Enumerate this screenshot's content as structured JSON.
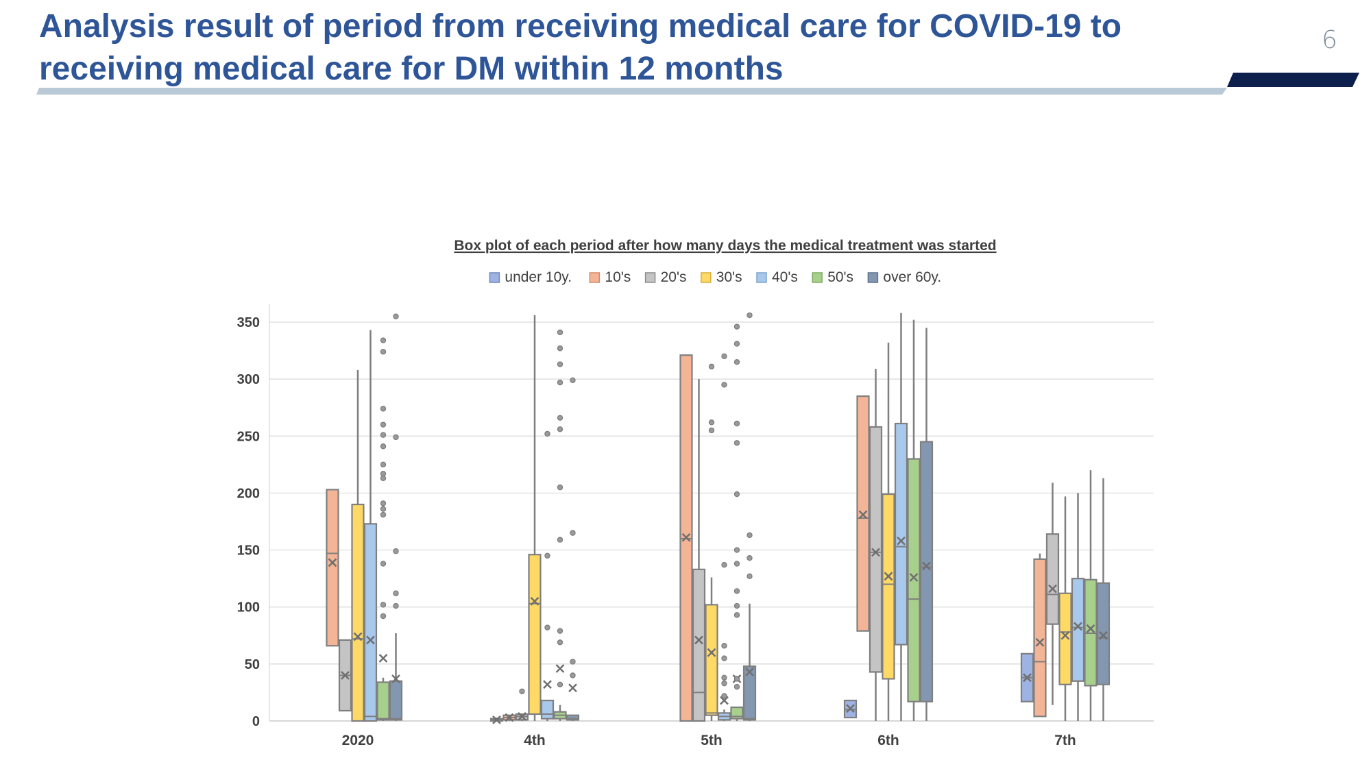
{
  "slide": {
    "title_line1": "Analysis result of period from receiving medical care for COVID-19 to",
    "title_line2": "receiving medical care for DM within 12 months",
    "page_number": "6"
  },
  "colors": {
    "title": "#2e5597",
    "rule_light": "#b9c9d6",
    "rule_dark": "#0d1f4c"
  },
  "chart_data": {
    "type": "box",
    "title": "Box plot of each period after how many days the medical treatment was started",
    "xlabel": "",
    "ylabel": "",
    "ylim": [
      0,
      360
    ],
    "yticks": [
      0,
      50,
      100,
      150,
      200,
      250,
      300,
      350
    ],
    "grid": true,
    "legend_position": "top",
    "categories": [
      "2020",
      "4th",
      "5th",
      "6th",
      "7th"
    ],
    "series": [
      {
        "name": "under 10y.",
        "color": "#9db3e4",
        "stroke": "#6f87b8",
        "boxes": [
          null,
          {
            "min": 0,
            "q1": 0,
            "median": 1,
            "q3": 2,
            "max": 3,
            "mean": 1
          },
          null,
          {
            "min": 3,
            "q1": 3,
            "median": 10,
            "q3": 18,
            "max": 18,
            "mean": 11
          },
          {
            "min": 17,
            "q1": 17,
            "median": 38,
            "q3": 59,
            "max": 59,
            "mean": 38
          }
        ],
        "outliers": [
          [],
          [],
          [],
          [],
          []
        ]
      },
      {
        "name": "10's",
        "color": "#f4b596",
        "stroke": "#d08a6a",
        "boxes": [
          {
            "min": 66,
            "q1": 66,
            "median": 147,
            "q3": 203,
            "max": 203,
            "mean": 139
          },
          {
            "min": 0,
            "q1": 1,
            "median": 3,
            "q3": 5,
            "max": 5,
            "mean": 3
          },
          {
            "min": 0,
            "q1": 0,
            "median": 160,
            "q3": 321,
            "max": 321,
            "mean": 161
          },
          {
            "min": 79,
            "q1": 79,
            "median": 178,
            "q3": 285,
            "max": 285,
            "mean": 181
          },
          {
            "min": 4,
            "q1": 4,
            "median": 52,
            "q3": 142,
            "max": 147,
            "mean": 69
          }
        ],
        "outliers": [
          [],
          [],
          [],
          [],
          []
        ]
      },
      {
        "name": "20's",
        "color": "#c4c4c4",
        "stroke": "#8c8c8c",
        "boxes": [
          {
            "min": 9,
            "q1": 9,
            "median": 40,
            "q3": 71,
            "max": 71,
            "mean": 40
          },
          {
            "min": 0,
            "q1": 1,
            "median": 4,
            "q3": 6,
            "max": 6,
            "mean": 4
          },
          {
            "min": 0,
            "q1": 0,
            "median": 25,
            "q3": 133,
            "max": 300,
            "mean": 71
          },
          {
            "min": 0,
            "q1": 43,
            "median": 148,
            "q3": 258,
            "max": 309,
            "mean": 148
          },
          {
            "min": 14,
            "q1": 85,
            "median": 111,
            "q3": 164,
            "max": 209,
            "mean": 116
          }
        ],
        "outliers": [
          [],
          [
            26
          ],
          [],
          [],
          []
        ]
      },
      {
        "name": "30's",
        "color": "#fed966",
        "stroke": "#d4ae3a",
        "boxes": [
          {
            "min": 0,
            "q1": 0,
            "median": 72,
            "q3": 190,
            "max": 308,
            "mean": 74
          },
          {
            "min": 0,
            "q1": 6,
            "median": 103,
            "q3": 146,
            "max": 356,
            "mean": 105
          },
          {
            "min": 0,
            "q1": 5,
            "median": 7,
            "q3": 102,
            "max": 126,
            "mean": 60
          },
          {
            "min": 0,
            "q1": 37,
            "median": 120,
            "q3": 199,
            "max": 332,
            "mean": 127
          },
          {
            "min": 0,
            "q1": 32,
            "median": 78,
            "q3": 112,
            "max": 197,
            "mean": 75
          }
        ],
        "outliers": [
          [],
          [],
          [
            311,
            262,
            255
          ],
          [],
          []
        ]
      },
      {
        "name": "40's",
        "color": "#a8c8ec",
        "stroke": "#7da3cc",
        "boxes": [
          {
            "min": 0,
            "q1": 0,
            "median": 4,
            "q3": 173,
            "max": 343,
            "mean": 71
          },
          {
            "min": 0,
            "q1": 2,
            "median": 6,
            "q3": 18,
            "max": 18,
            "mean": 32
          },
          {
            "min": 0,
            "q1": 1,
            "median": 4,
            "q3": 7,
            "max": 10,
            "mean": 18
          },
          {
            "min": 0,
            "q1": 67,
            "median": 153,
            "q3": 261,
            "max": 358,
            "mean": 158
          },
          {
            "min": 0,
            "q1": 35,
            "median": 82,
            "q3": 125,
            "max": 200,
            "mean": 83
          }
        ],
        "outliers": [
          [],
          [
            252,
            145,
            82
          ],
          [
            320,
            295,
            137,
            66,
            55,
            38,
            33,
            22
          ],
          [],
          []
        ]
      },
      {
        "name": "50's",
        "color": "#a8d08d",
        "stroke": "#7eab63",
        "boxes": [
          {
            "min": 0,
            "q1": 1,
            "median": 2,
            "q3": 34,
            "max": 38,
            "mean": 55
          },
          {
            "min": 0,
            "q1": 2,
            "median": 5,
            "q3": 8,
            "max": 14,
            "mean": 46
          },
          {
            "min": 0,
            "q1": 2,
            "median": 4,
            "q3": 12,
            "max": 12,
            "mean": 37
          },
          {
            "min": 0,
            "q1": 17,
            "median": 107,
            "q3": 230,
            "max": 352,
            "mean": 126
          },
          {
            "min": 0,
            "q1": 31,
            "median": 77,
            "q3": 124,
            "max": 220,
            "mean": 81
          }
        ],
        "outliers": [
          [
            334,
            324,
            274,
            260,
            251,
            241,
            225,
            217,
            213,
            191,
            186,
            181,
            138,
            102,
            92
          ],
          [
            341,
            327,
            313,
            297,
            266,
            256,
            205,
            159,
            79,
            69,
            32
          ],
          [
            346,
            331,
            315,
            261,
            244,
            199,
            150,
            138,
            114,
            101,
            93,
            37,
            30
          ],
          [],
          []
        ]
      },
      {
        "name": "over 60y.",
        "color": "#8497b0",
        "stroke": "#5f728c",
        "boxes": [
          {
            "min": 0,
            "q1": 1,
            "median": 2,
            "q3": 35,
            "max": 77,
            "mean": 37
          },
          {
            "min": 0,
            "q1": 1,
            "median": 2,
            "q3": 5,
            "max": 5,
            "mean": 29
          },
          {
            "min": 0,
            "q1": 1,
            "median": 2,
            "q3": 48,
            "max": 103,
            "mean": 43
          },
          {
            "min": 0,
            "q1": 17,
            "median": 135,
            "q3": 245,
            "max": 345,
            "mean": 136
          },
          {
            "min": 0,
            "q1": 32,
            "median": 73,
            "q3": 121,
            "max": 213,
            "mean": 75
          }
        ],
        "outliers": [
          [
            355,
            249,
            149,
            112,
            101
          ],
          [
            299,
            165,
            52,
            40
          ],
          [
            356,
            163,
            143,
            127
          ],
          [],
          []
        ]
      }
    ]
  }
}
